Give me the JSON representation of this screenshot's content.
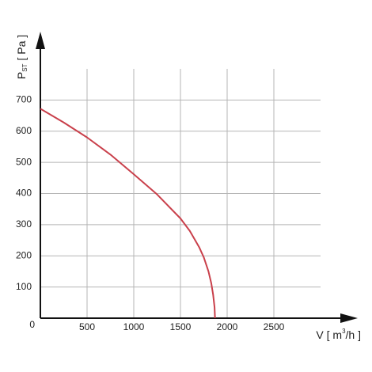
{
  "chart_data": {
    "type": "line",
    "x_label": {
      "main": "V [ m",
      "sup": "3",
      "end": "/h ]"
    },
    "y_label": {
      "main": "P",
      "sub": "ST",
      "end": "[ Pa ]"
    },
    "x": [
      0,
      250,
      500,
      750,
      1000,
      1250,
      1500,
      1600,
      1700,
      1750,
      1800,
      1830,
      1850,
      1865,
      1870
    ],
    "series": [
      {
        "color": "#c9404b",
        "values": [
          672,
          628,
          580,
          525,
          462,
          397,
          320,
          280,
          228,
          195,
          150,
          112,
          75,
          35,
          0
        ]
      }
    ],
    "xlim": [
      0,
      3000
    ],
    "xticks": [
      500,
      1000,
      1500,
      2000,
      2500
    ],
    "ylim": [
      0,
      800
    ],
    "yticks": [
      0,
      100,
      200,
      300,
      400,
      500,
      600,
      700
    ],
    "grid": true
  }
}
